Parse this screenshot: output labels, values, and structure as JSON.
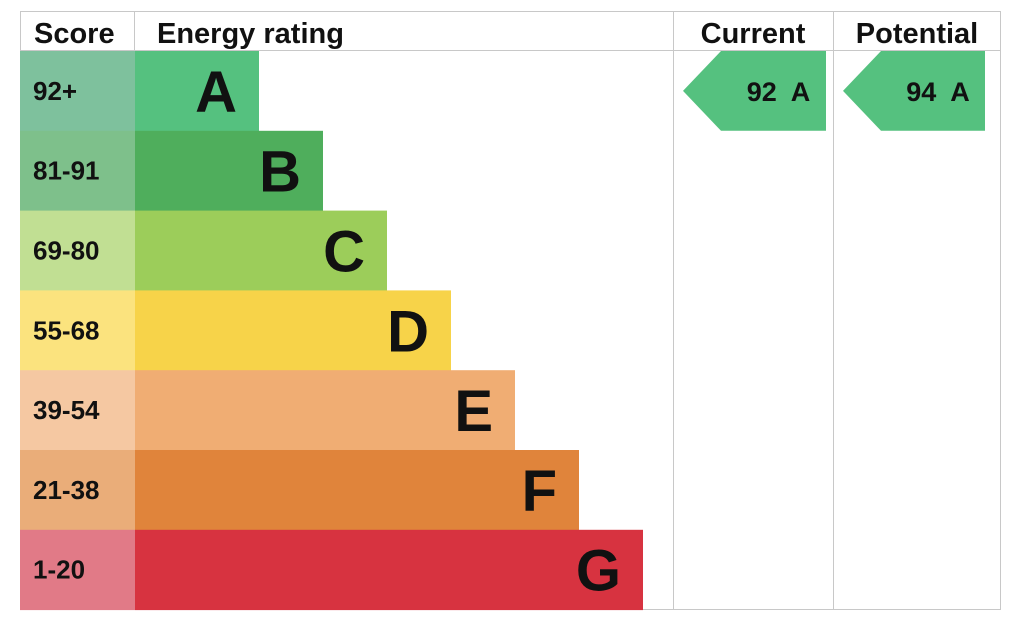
{
  "chart_data": {
    "type": "bar",
    "title": "",
    "headers": {
      "score": "Score",
      "energy_rating": "Energy rating",
      "current": "Current",
      "potential": "Potential"
    },
    "bands": [
      {
        "letter": "A",
        "range": "92+",
        "min": 92,
        "max": 100,
        "color": "#55c17f",
        "score_bg": "#7ec19d"
      },
      {
        "letter": "B",
        "range": "81-91",
        "min": 81,
        "max": 91,
        "color": "#4fae5c",
        "score_bg": "#7ec08b"
      },
      {
        "letter": "C",
        "range": "69-80",
        "min": 69,
        "max": 80,
        "color": "#9ccd5a",
        "score_bg": "#c1df93"
      },
      {
        "letter": "D",
        "range": "55-68",
        "min": 55,
        "max": 68,
        "color": "#f7d349",
        "score_bg": "#fbe37e"
      },
      {
        "letter": "E",
        "range": "39-54",
        "min": 39,
        "max": 54,
        "color": "#f0ad73",
        "score_bg": "#f5c8a2"
      },
      {
        "letter": "F",
        "range": "21-38",
        "min": 21,
        "max": 38,
        "color": "#e0843b",
        "score_bg": "#eaad79"
      },
      {
        "letter": "G",
        "range": "1-20",
        "min": 1,
        "max": 20,
        "color": "#d73340",
        "score_bg": "#e17a87"
      }
    ],
    "current": {
      "value": 92,
      "band": "A",
      "label": "92  A",
      "color": "#55c17f"
    },
    "potential": {
      "value": 94,
      "band": "A",
      "label": "94  A",
      "color": "#55c17f"
    }
  }
}
